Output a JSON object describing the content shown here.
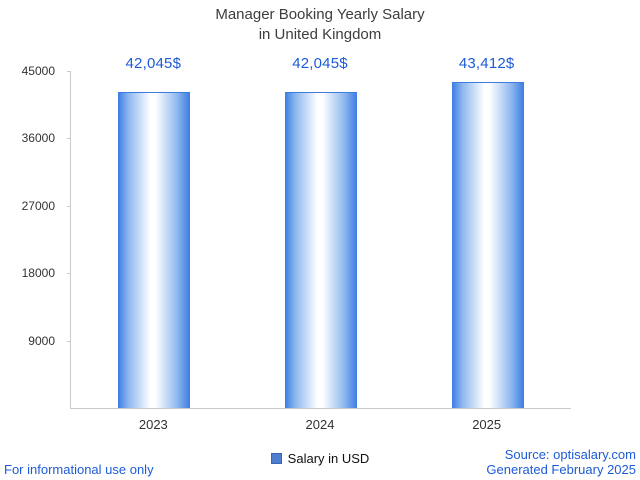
{
  "title": {
    "line1": "Manager Booking Yearly Salary",
    "line2": "in United Kingdom"
  },
  "chart_data": {
    "type": "bar",
    "title": "Manager Booking Yearly Salary in United Kingdom",
    "categories": [
      "2023",
      "2024",
      "2025"
    ],
    "series": [
      {
        "name": "Salary in USD",
        "values": [
          42045,
          42045,
          43412
        ]
      }
    ],
    "data_labels": [
      "42,045$",
      "42,045$",
      "43,412$"
    ],
    "xlabel": "",
    "ylabel": "",
    "ylim": [
      0,
      45000
    ],
    "yticks": [
      45000,
      36000,
      27000,
      18000,
      9000
    ],
    "grid": "off",
    "legend_position": "bottom",
    "bar_gradient": [
      "#3d7ce1",
      "#ffffff",
      "#3d7ce1"
    ]
  },
  "legend": {
    "label": "Salary in USD",
    "swatch_color": "#4f7ed0"
  },
  "footer": {
    "disclaimer": "For informational use only",
    "source": "Source: optisalary.com",
    "generated": "Generated February 2025"
  },
  "colors": {
    "accent_blue": "#1d5bd8",
    "title_gray": "#3d3d3d",
    "axis_gray": "#c9c9c9",
    "bar_blue": "#3d7ce1"
  }
}
